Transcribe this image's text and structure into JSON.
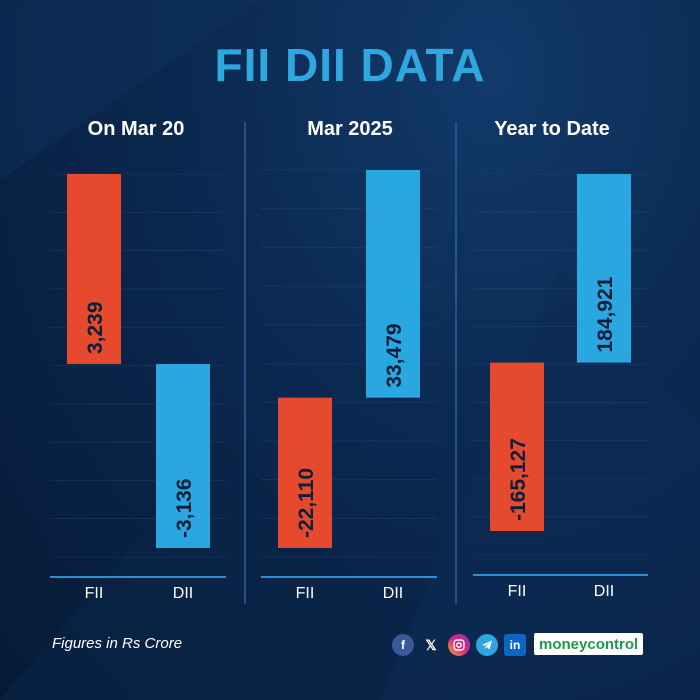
{
  "title": "FII DII DATA",
  "footnote": "Figures in Rs Crore",
  "brand": {
    "part1": "money",
    "part2": "control"
  },
  "social_icons": [
    "facebook-icon",
    "x-icon",
    "instagram-icon",
    "telegram-icon",
    "linkedin-icon"
  ],
  "colors": {
    "fii": "#e64a2e",
    "dii": "#2aa7e0",
    "title": "#2fa8e0",
    "label": "#0b1f3a"
  },
  "chart_data": [
    {
      "type": "bar",
      "title": "On Mar 20",
      "categories": [
        "FII",
        "DII"
      ],
      "values": [
        3239,
        -3136
      ],
      "value_labels": [
        "3,239",
        "-3,136"
      ]
    },
    {
      "type": "bar",
      "title": "Mar 2025",
      "categories": [
        "FII",
        "DII"
      ],
      "values": [
        -22110,
        33479
      ],
      "value_labels": [
        "-22,110",
        "33,479"
      ]
    },
    {
      "type": "bar",
      "title": "Year to Date",
      "categories": [
        "FII",
        "DII"
      ],
      "values": [
        -165127,
        184921
      ],
      "value_labels": [
        "-165,127",
        "184,921"
      ]
    }
  ]
}
